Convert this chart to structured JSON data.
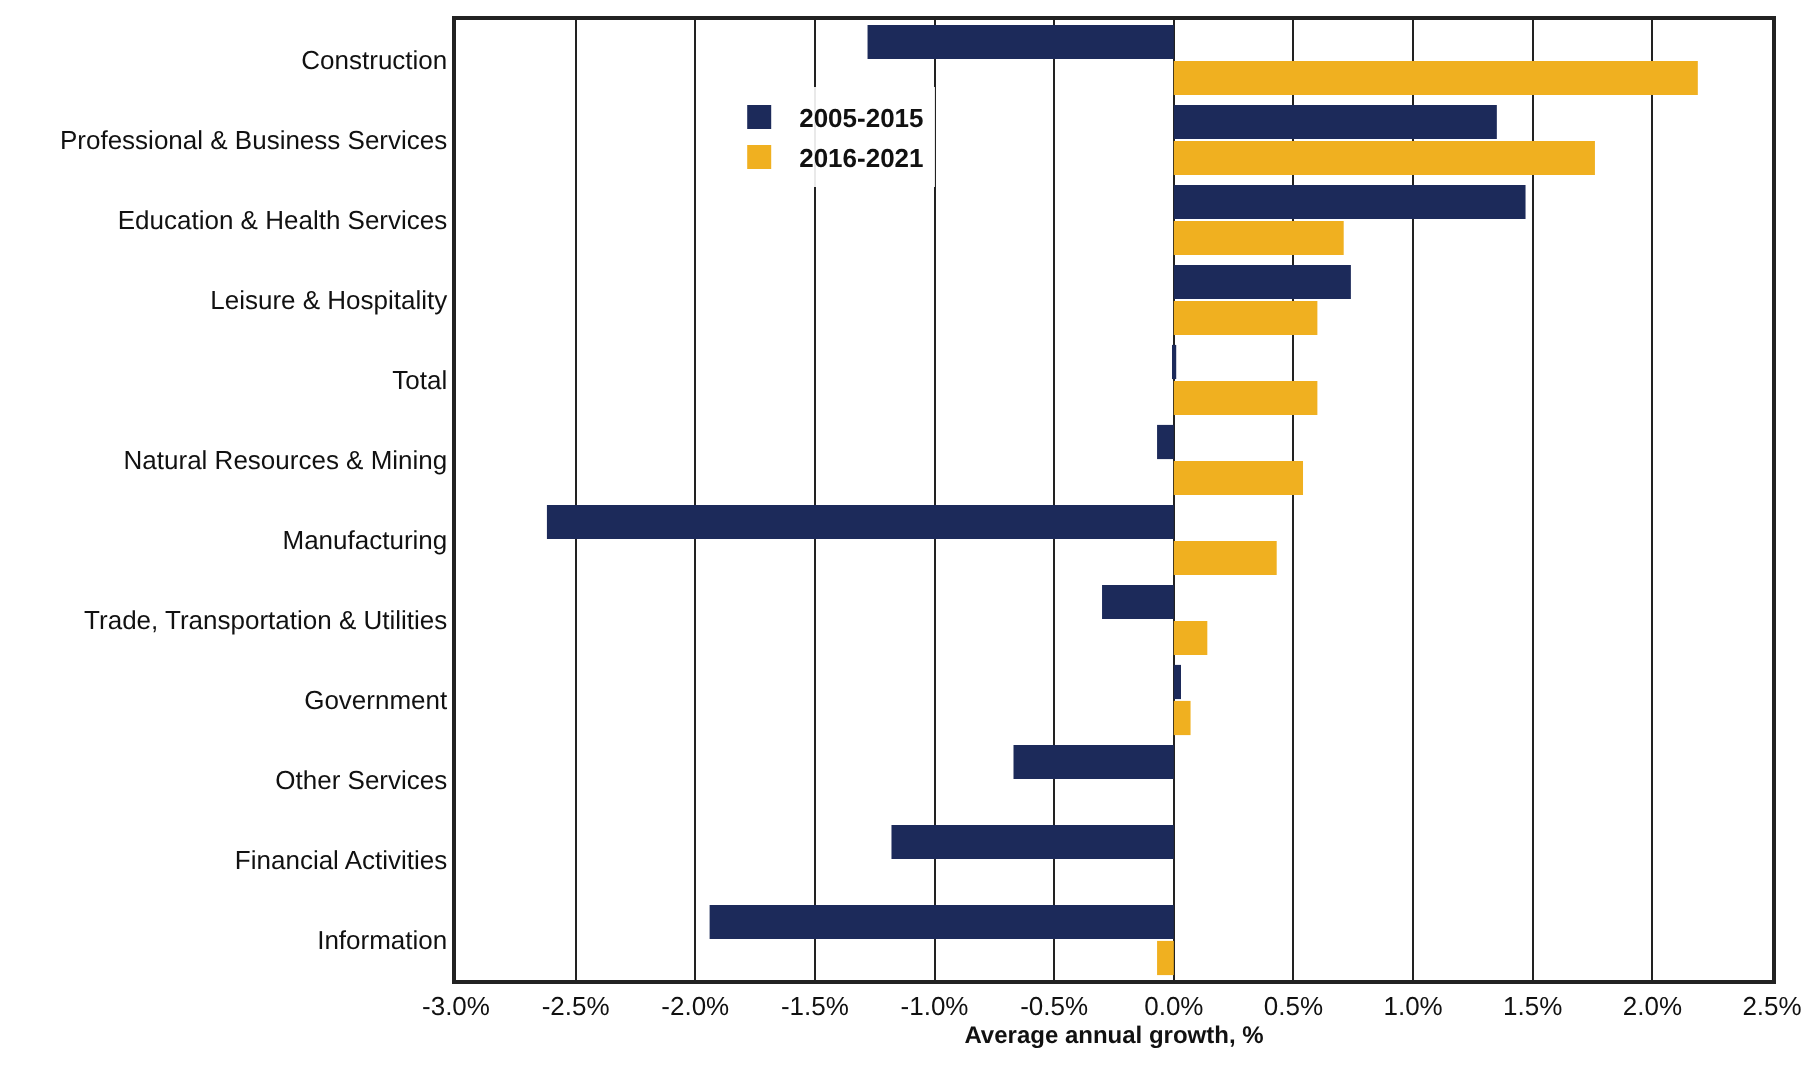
{
  "chart_data": {
    "type": "bar",
    "orientation": "horizontal",
    "xlabel": "Average annual growth, %",
    "categories": [
      "Construction",
      "Professional & Business Services",
      "Education & Health Services",
      "Leisure & Hospitality",
      "Total",
      "Natural Resources & Mining",
      "Manufacturing",
      "Trade, Transportation & Utilities",
      "Government",
      "Other Services",
      "Financial Activities",
      "Information"
    ],
    "series": [
      {
        "name": "2005-2015",
        "color": "#1c2a5a",
        "values": [
          -1.28,
          1.35,
          1.47,
          0.74,
          0.01,
          -0.07,
          -2.62,
          -0.3,
          0.03,
          -0.67,
          -1.18,
          -1.94
        ]
      },
      {
        "name": "2016-2021",
        "color": "#f0b020",
        "values": [
          2.19,
          1.76,
          0.71,
          0.6,
          0.6,
          0.54,
          0.43,
          0.14,
          0.07,
          0,
          0,
          -0.07
        ]
      }
    ],
    "xlim": [
      -3,
      2.5
    ],
    "xticks": [
      {
        "value": -3,
        "label": "-3.0%"
      },
      {
        "value": -2.5,
        "label": "-2.5%"
      },
      {
        "value": -2,
        "label": "-2.0%"
      },
      {
        "value": -1.5,
        "label": "-1.5%"
      },
      {
        "value": -1,
        "label": "-1.0%"
      },
      {
        "value": -0.5,
        "label": "-0.5%"
      },
      {
        "value": 0,
        "label": "0.0%"
      },
      {
        "value": 0.5,
        "label": "0.5%"
      },
      {
        "value": 1,
        "label": "1.0%"
      },
      {
        "value": 1.5,
        "label": "1.5%"
      },
      {
        "value": 2,
        "label": "2.0%"
      },
      {
        "value": 2.5,
        "label": "2.5%"
      }
    ],
    "grid": "x",
    "legend": "top left"
  }
}
